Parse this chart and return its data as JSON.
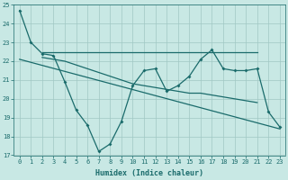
{
  "xlabel": "Humidex (Indice chaleur)",
  "bg_color": "#c8e8e4",
  "grid_color": "#a0c8c4",
  "line_color": "#1a6b6b",
  "ylim": [
    17,
    25
  ],
  "xlim": [
    -0.5,
    23.5
  ],
  "yticks": [
    17,
    18,
    19,
    20,
    21,
    22,
    23,
    24,
    25
  ],
  "xticks": [
    0,
    1,
    2,
    3,
    4,
    5,
    6,
    7,
    8,
    9,
    10,
    11,
    12,
    13,
    14,
    15,
    16,
    17,
    18,
    19,
    20,
    21,
    22,
    23
  ],
  "main_x": [
    0,
    1,
    2,
    3,
    4,
    5,
    6,
    7,
    8,
    9,
    10,
    11,
    12,
    13,
    14,
    15,
    16,
    17,
    18,
    19,
    20,
    21,
    22,
    23
  ],
  "main_y": [
    24.7,
    23.0,
    22.4,
    22.3,
    20.9,
    19.4,
    18.6,
    17.2,
    17.6,
    18.8,
    20.7,
    21.5,
    21.6,
    20.4,
    20.7,
    21.2,
    22.1,
    22.6,
    21.6,
    21.5,
    21.5,
    21.6,
    19.3,
    18.5
  ],
  "upper_x": [
    2,
    3,
    4,
    5,
    6,
    7,
    8,
    9,
    10,
    11,
    12,
    13,
    14,
    15,
    16,
    17,
    18,
    19,
    20,
    21
  ],
  "upper_y": [
    22.5,
    22.5,
    22.5,
    22.5,
    22.5,
    22.5,
    22.5,
    22.5,
    22.5,
    22.5,
    22.5,
    22.5,
    22.5,
    22.5,
    22.5,
    22.5,
    22.5,
    22.5,
    22.5,
    22.5
  ],
  "mid_x": [
    2,
    3,
    4,
    5,
    6,
    7,
    8,
    9,
    10,
    11,
    12,
    13,
    14,
    15,
    16,
    17,
    18,
    19,
    20,
    21
  ],
  "mid_y": [
    22.2,
    22.1,
    22.0,
    21.8,
    21.6,
    21.4,
    21.2,
    21.0,
    20.8,
    20.7,
    20.6,
    20.5,
    20.4,
    20.3,
    20.3,
    20.2,
    20.1,
    20.0,
    19.9,
    19.8
  ],
  "trend_x": [
    0,
    23
  ],
  "trend_y": [
    22.1,
    18.4
  ]
}
